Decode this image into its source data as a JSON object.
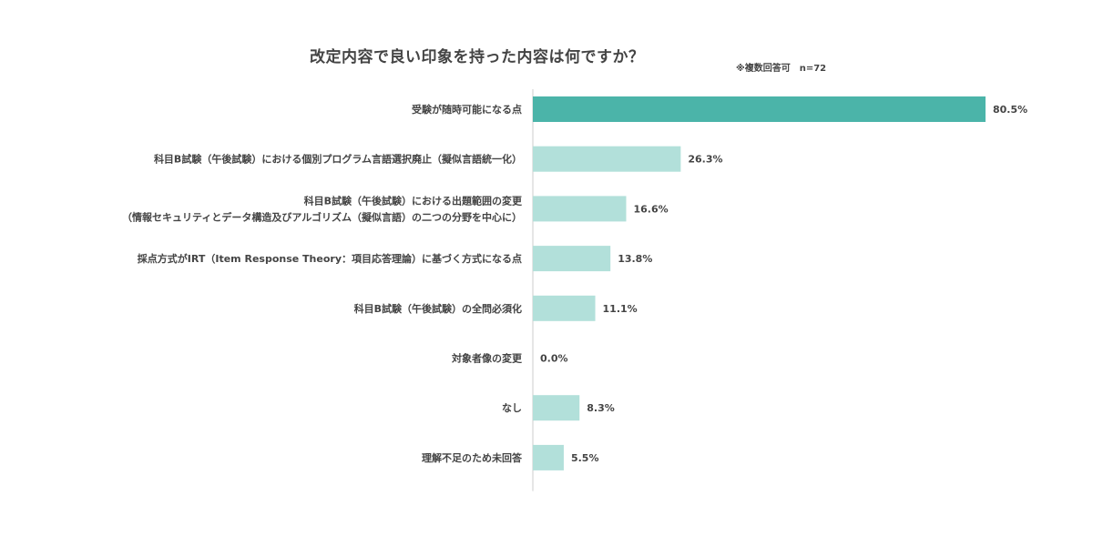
{
  "chart_data": {
    "type": "bar",
    "orientation": "horizontal",
    "title": "改定内容で良い印象を持った内容は何ですか？",
    "note": "※複数回答可　n=72",
    "categories": [
      [
        "受験が随時可能になる点"
      ],
      [
        "科目B試験（午後試験）における個別プログラム言語選択廃止（擬似言語統一化）"
      ],
      [
        "科目B試験（午後試験）における出題範囲の変更",
        "（情報セキュリティとデータ構造及びアルゴリズム（擬似言語）の二つの分野を中心に）"
      ],
      [
        "採点方式がIRT（Item Response Theory：項目応答理論）に基づく方式になる点"
      ],
      [
        "科目B試験（午後試験）の全問必須化"
      ],
      [
        "対象者像の変更"
      ],
      [
        "なし"
      ],
      [
        "理解不足のため未回答"
      ]
    ],
    "values": [
      80.5,
      26.3,
      16.6,
      13.8,
      11.1,
      0.0,
      8.3,
      5.5
    ],
    "value_labels": [
      "80.5%",
      "26.3%",
      "16.6%",
      "13.8%",
      "11.1%",
      "0.0%",
      "8.3%",
      "5.5%"
    ],
    "unit": "%",
    "xlim": [
      0,
      80.5
    ],
    "grid": false,
    "colors": {
      "highlight": "#4bb4a9",
      "default": "#b2e0da",
      "axis": "#cccccc",
      "text": "#444444"
    },
    "highlight_index": 0
  }
}
